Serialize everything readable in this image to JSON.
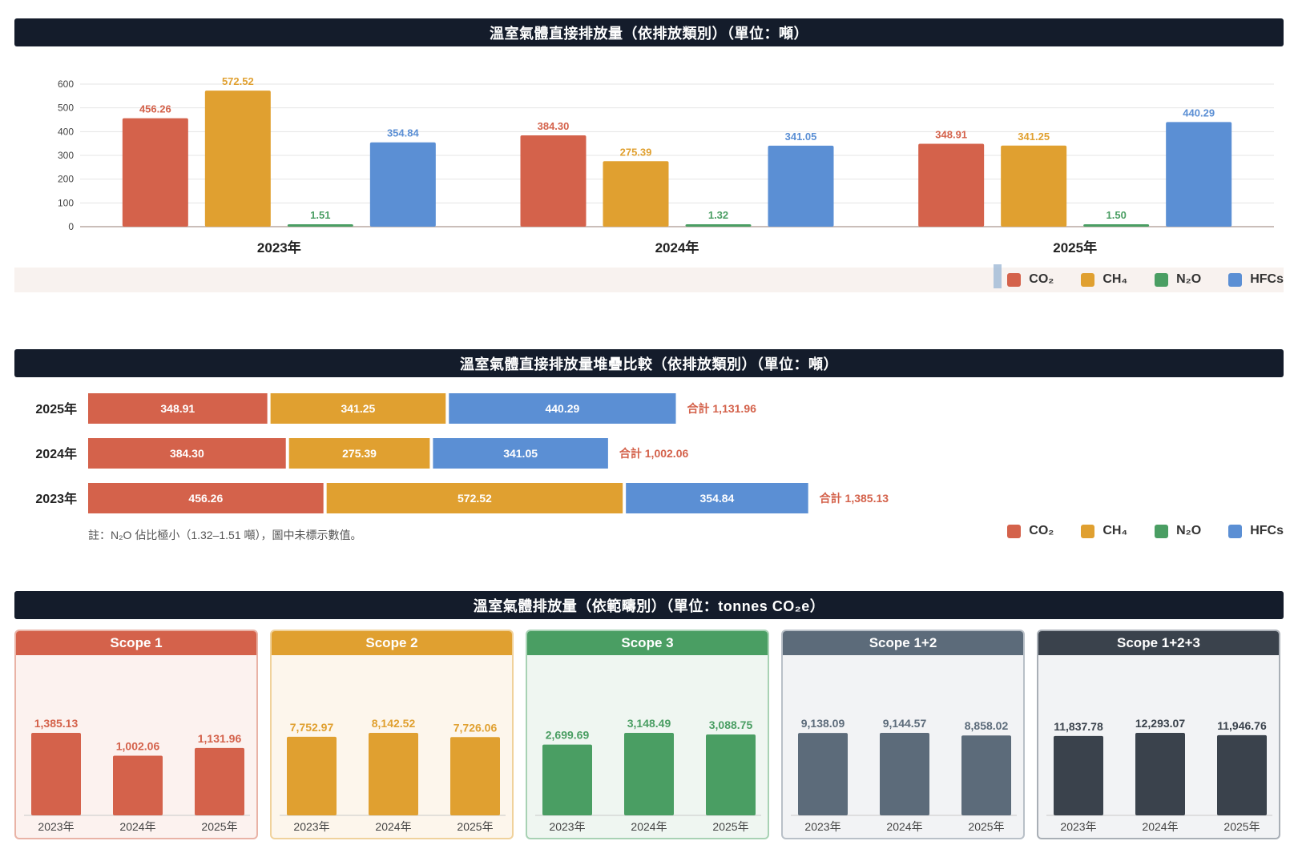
{
  "colors": {
    "CO2": "#d4624b",
    "CH4": "#e0a030",
    "N2O": "#4a9e63",
    "HFCs": "#5b8fd4"
  },
  "legend": [
    {
      "key": "CO2",
      "label": "CO₂"
    },
    {
      "key": "CH4",
      "label": "CH₄"
    },
    {
      "key": "N2O",
      "label": "N₂O"
    },
    {
      "key": "HFCs",
      "label": "HFCs"
    }
  ],
  "chart_data": [
    {
      "id": "chart1",
      "type": "bar",
      "title": "溫室氣體直接排放量（依排放類別）（單位：噸）",
      "categories": [
        "2023年",
        "2024年",
        "2025年"
      ],
      "series": [
        {
          "name": "CO₂",
          "key": "CO2",
          "values": [
            456.26,
            384.3,
            348.91
          ]
        },
        {
          "name": "CH₄",
          "key": "CH4",
          "values": [
            572.52,
            275.39,
            341.25
          ]
        },
        {
          "name": "N₂O",
          "key": "N2O",
          "values": [
            1.51,
            1.32,
            1.5
          ]
        },
        {
          "name": "HFCs",
          "key": "HFCs",
          "values": [
            354.84,
            341.05,
            440.29
          ]
        }
      ],
      "value_labels": [
        [
          "456.26",
          "384.30",
          "348.91"
        ],
        [
          "572.52",
          "275.39",
          "341.25"
        ],
        [
          "1.51",
          "1.32",
          "1.50"
        ],
        [
          "354.84",
          "341.05",
          "440.29"
        ]
      ],
      "yticks": [
        "0",
        "100",
        "200",
        "300",
        "400",
        "500",
        "600"
      ],
      "ylim": [
        0,
        600
      ],
      "grid": true,
      "legend_position": "bottom-right"
    },
    {
      "id": "chart2",
      "type": "bar",
      "orientation": "horizontal-stacked",
      "title": "溫室氣體直接排放量堆疊比較（依排放類別）（單位：噸）",
      "categories": [
        "2025年",
        "2024年",
        "2023年"
      ],
      "series": [
        {
          "name": "CO₂",
          "key": "CO2",
          "values": [
            348.91,
            384.3,
            456.26
          ],
          "labels": [
            "348.91",
            "384.30",
            "456.26"
          ]
        },
        {
          "name": "CH₄",
          "key": "CH4",
          "values": [
            341.25,
            275.39,
            572.52
          ],
          "labels": [
            "341.25",
            "275.39",
            "572.52"
          ]
        },
        {
          "name": "HFCs",
          "key": "HFCs",
          "values": [
            440.29,
            341.05,
            354.84
          ],
          "labels": [
            "440.29",
            "341.05",
            "354.84"
          ]
        }
      ],
      "totals": [
        "合計 1,131.96",
        "合計 1,002.06",
        "合計 1,385.13"
      ],
      "note": "註：N₂O 佔比極小（1.32–1.51 噸），圖中未標示數值。",
      "legend_position": "bottom-right"
    },
    {
      "id": "chart3",
      "type": "bar",
      "title": "溫室氣體排放量（依範疇別）（單位：tonnes CO₂e）",
      "panels": [
        {
          "title": "Scope 1",
          "color": "#d4624b",
          "bg": "#fcf2ef",
          "border": "#e9b3a6",
          "categories": [
            "2023年",
            "2024年",
            "2025年"
          ],
          "values": [
            1385.13,
            1002.06,
            1131.96
          ],
          "labels": [
            "1,385.13",
            "1,002.06",
            "1,131.96"
          ],
          "ylim": [
            0,
            1400
          ]
        },
        {
          "title": "Scope 2",
          "color": "#e0a030",
          "bg": "#fdf6ec",
          "border": "#f0d29c",
          "categories": [
            "2023年",
            "2024年",
            "2025年"
          ],
          "values": [
            7752.97,
            8142.52,
            7726.06
          ],
          "labels": [
            "7,752.97",
            "8,142.52",
            "7,726.06"
          ],
          "ylim": [
            0,
            8200
          ]
        },
        {
          "title": "Scope 3",
          "color": "#4a9e63",
          "bg": "#eff6f1",
          "border": "#a8d2b4",
          "categories": [
            "2023年",
            "2024年",
            "2025年"
          ],
          "values": [
            2699.69,
            3148.49,
            3088.75
          ],
          "labels": [
            "2,699.69",
            "3,148.49",
            "3,088.75"
          ],
          "ylim": [
            0,
            3200
          ]
        },
        {
          "title": "Scope 1+2",
          "color": "#5c6b7a",
          "bg": "#f2f3f5",
          "border": "#b9c0c8",
          "categories": [
            "2023年",
            "2024年",
            "2025年"
          ],
          "values": [
            9138.09,
            9144.57,
            8858.02
          ],
          "labels": [
            "9,138.09",
            "9,144.57",
            "8,858.02"
          ],
          "ylim": [
            0,
            9200
          ]
        },
        {
          "title": "Scope 1+2+3",
          "color": "#3a424c",
          "bg": "#f2f3f5",
          "border": "#a9afb6",
          "categories": [
            "2023年",
            "2024年",
            "2025年"
          ],
          "values": [
            11837.78,
            12293.07,
            11946.76
          ],
          "labels": [
            "11,837.78",
            "12,293.07",
            "11,946.76"
          ],
          "ylim": [
            0,
            12400
          ]
        }
      ]
    }
  ]
}
